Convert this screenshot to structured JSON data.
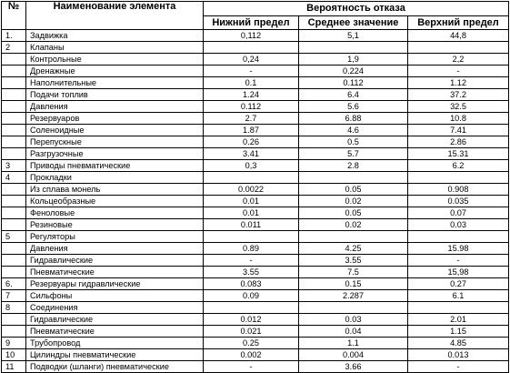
{
  "headers": {
    "number": "№",
    "name": "Наименование элемента",
    "probability": "Вероятность отказа",
    "lower": "Нижний предел",
    "mean": "Среднее значение",
    "upper": "Верхний предел"
  },
  "rows": [
    {
      "num": "1.",
      "name": "Задвижка",
      "lower": "0,112",
      "mean": "5,1",
      "upper": "44,8"
    },
    {
      "num": "2",
      "name": "Клапаны",
      "lower": "",
      "mean": "",
      "upper": ""
    },
    {
      "num": "",
      "name": "Контрольные",
      "lower": "0,24",
      "mean": "1,9",
      "upper": "2,2"
    },
    {
      "num": "",
      "name": "Дренажные",
      "lower": "-",
      "mean": "0.224",
      "upper": "-"
    },
    {
      "num": "",
      "name": "Наполнительные",
      "lower": "0.1",
      "mean": "0.112",
      "upper": "1.12"
    },
    {
      "num": "",
      "name": "Подачи топлив",
      "lower": "1.24",
      "mean": "6.4",
      "upper": "37.2"
    },
    {
      "num": "",
      "name": "Давления",
      "lower": "0.112",
      "mean": "5.6",
      "upper": "32.5"
    },
    {
      "num": "",
      "name": "Резервуаров",
      "lower": "2.7",
      "mean": "6.88",
      "upper": "10.8"
    },
    {
      "num": "",
      "name": "Соленоидные",
      "lower": "1.87",
      "mean": "4.6",
      "upper": "7.41"
    },
    {
      "num": "",
      "name": "Перепускные",
      "lower": "0.26",
      "mean": "0.5",
      "upper": "2.86"
    },
    {
      "num": "",
      "name": "Разгрузочные",
      "lower": "3.41",
      "mean": "5.7",
      "upper": "15.31"
    },
    {
      "num": "3",
      "name": "Приводы пневматические",
      "lower": "0,3",
      "mean": "2.8",
      "upper": "6.2"
    },
    {
      "num": "4",
      "name": "Прокладки",
      "lower": "",
      "mean": "",
      "upper": ""
    },
    {
      "num": "",
      "name": "Из сплава монель",
      "lower": "0.0022",
      "mean": "0.05",
      "upper": "0.908"
    },
    {
      "num": "",
      "name": "Кольцеобразные",
      "lower": "0.01",
      "mean": "0.02",
      "upper": "0.035"
    },
    {
      "num": "",
      "name": "Феноловые",
      "lower": "0.01",
      "mean": "0.05",
      "upper": "0.07"
    },
    {
      "num": "",
      "name": "Резиновые",
      "lower": "0.011",
      "mean": "0.02",
      "upper": "0.03"
    },
    {
      "num": "5",
      "name": "Регуляторы",
      "lower": "",
      "mean": "",
      "upper": ""
    },
    {
      "num": "",
      "name": "Давления",
      "lower": "0.89",
      "mean": "4.25",
      "upper": "15.98"
    },
    {
      "num": "",
      "name": "Гидравлические",
      "lower": "-",
      "mean": "3.55",
      "upper": "-"
    },
    {
      "num": "",
      "name": "Пневматические",
      "lower": "3.55",
      "mean": "7.5",
      "upper": "15,98"
    },
    {
      "num": "6.",
      "name": "Резервуары гидравлические",
      "lower": "0.083",
      "mean": "0.15",
      "upper": "0.27"
    },
    {
      "num": "7",
      "name": "Сильфоны",
      "lower": "0.09",
      "mean": "2.287",
      "upper": "6.1"
    },
    {
      "num": "8",
      "name": "Соединения",
      "lower": "",
      "mean": "",
      "upper": ""
    },
    {
      "num": "",
      "name": "Гидравлические",
      "lower": "0.012",
      "mean": "0.03",
      "upper": "2.01"
    },
    {
      "num": "",
      "name": "Пневматические",
      "lower": "0.021",
      "mean": "0.04",
      "upper": "1.15"
    },
    {
      "num": "9",
      "name": "Трубопровод",
      "lower": "0.25",
      "mean": "1.1",
      "upper": "4.85"
    },
    {
      "num": "10",
      "name": "Цилиндры пневматические",
      "lower": "0.002",
      "mean": "0.004",
      "upper": "0.013"
    },
    {
      "num": "11",
      "name": "Подводки (шланги) пневматические",
      "lower": "-",
      "mean": "3.66",
      "upper": "-"
    }
  ]
}
